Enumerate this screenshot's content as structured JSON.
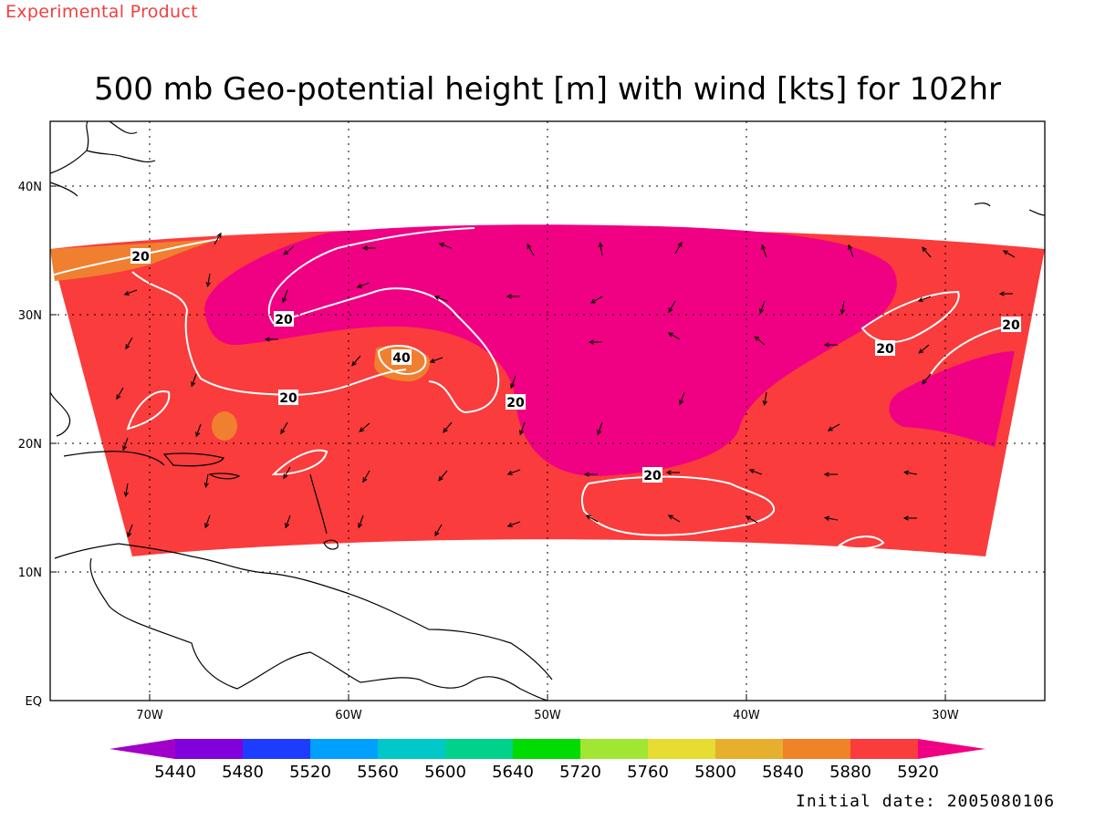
{
  "header": {
    "product_label": "Experimental Product",
    "title": "500 mb Geo-potential height [m] with wind [kts] for 102hr"
  },
  "footer": {
    "initial_date": "Initial date: 2005080106"
  },
  "map": {
    "lat_range": [
      0,
      45
    ],
    "lon_range": [
      -75,
      -25
    ],
    "lat_ticks": [
      "EQ",
      "10N",
      "20N",
      "30N",
      "40N"
    ],
    "lon_ticks": [
      "70W",
      "60W",
      "50W",
      "40W",
      "30W"
    ],
    "grid": "dotted",
    "contour_labels": [
      "20",
      "20",
      "20",
      "20",
      "40",
      "20",
      "20",
      "20",
      "20"
    ],
    "colors": {
      "band_5880": "#f08030",
      "band_5920": "#fa3c3c",
      "band_above": "#f00082",
      "contour_line": "#ffffff"
    }
  },
  "colorbar": {
    "levels": [
      "5440",
      "5480",
      "5520",
      "5560",
      "5600",
      "5640",
      "5720",
      "5760",
      "5800",
      "5840",
      "5880",
      "5920"
    ],
    "colors": [
      "#a000c8",
      "#8200dc",
      "#1e3cff",
      "#00a0ff",
      "#00c8c8",
      "#00d28c",
      "#00dc00",
      "#a0e632",
      "#e6dc32",
      "#e6af2d",
      "#f08228",
      "#fa3c3c",
      "#f00082"
    ]
  }
}
